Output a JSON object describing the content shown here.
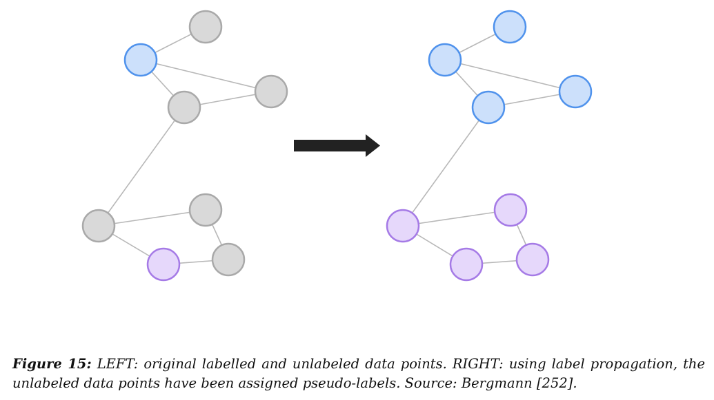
{
  "colors": {
    "blue_fill": "#cce0fb",
    "blue_stroke": "#4f92ec",
    "gray_fill": "#d9d9d9",
    "gray_stroke": "#a9a9a9",
    "purple_fill": "#e6d8fb",
    "purple_stroke": "#a57ae6",
    "edge": "#b8b8b8",
    "arrow": "#222222"
  },
  "graphs": {
    "left": {
      "nodes": [
        {
          "id": "a",
          "class": "blue"
        },
        {
          "id": "b",
          "class": "unlabeled"
        },
        {
          "id": "c",
          "class": "unlabeled"
        },
        {
          "id": "d",
          "class": "unlabeled"
        },
        {
          "id": "e",
          "class": "unlabeled"
        },
        {
          "id": "f",
          "class": "unlabeled"
        },
        {
          "id": "g",
          "class": "unlabeled"
        },
        {
          "id": "h",
          "class": "purple"
        }
      ],
      "edges": [
        [
          "a",
          "b"
        ],
        [
          "a",
          "c"
        ],
        [
          "a",
          "d"
        ],
        [
          "d",
          "c"
        ],
        [
          "d",
          "e"
        ],
        [
          "e",
          "f"
        ],
        [
          "f",
          "g"
        ],
        [
          "e",
          "h"
        ],
        [
          "h",
          "g"
        ]
      ]
    },
    "right": {
      "nodes": [
        {
          "id": "a",
          "class": "blue"
        },
        {
          "id": "b",
          "class": "blue"
        },
        {
          "id": "c",
          "class": "blue"
        },
        {
          "id": "d",
          "class": "blue"
        },
        {
          "id": "e",
          "class": "purple"
        },
        {
          "id": "f",
          "class": "purple"
        },
        {
          "id": "g",
          "class": "purple"
        },
        {
          "id": "h",
          "class": "purple"
        }
      ],
      "edges": [
        [
          "a",
          "b"
        ],
        [
          "a",
          "c"
        ],
        [
          "a",
          "d"
        ],
        [
          "d",
          "c"
        ],
        [
          "d",
          "e"
        ],
        [
          "e",
          "f"
        ],
        [
          "f",
          "g"
        ],
        [
          "e",
          "h"
        ],
        [
          "h",
          "g"
        ]
      ]
    }
  },
  "arrow_icon": "right-arrow-icon",
  "caption": {
    "label": "Figure 15:",
    "text": " LEFT: original labelled and unlabeled data points. RIGHT: using label propagation, the unlabeled data points have been assigned pseudo-labels. Source: Bergmann [252]."
  }
}
